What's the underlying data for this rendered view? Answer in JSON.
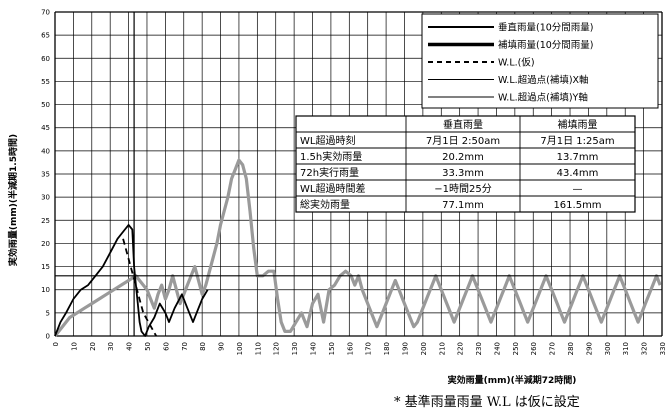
{
  "chart_data": {
    "type": "line",
    "title": "",
    "xlabel": "実効雨量(mm)(半減期72時間)",
    "ylabel": "実効雨量(mm)(半減期1.5時間)",
    "xlim": [
      0,
      330
    ],
    "ylim": [
      0,
      70
    ],
    "x_ticks": [
      0,
      10,
      20,
      30,
      40,
      50,
      60,
      70,
      80,
      90,
      100,
      110,
      120,
      130,
      140,
      150,
      160,
      170,
      180,
      190,
      200,
      210,
      220,
      230,
      240,
      250,
      260,
      270,
      280,
      290,
      300,
      310,
      320,
      330
    ],
    "y_ticks": [
      0,
      5,
      10,
      15,
      20,
      25,
      30,
      35,
      40,
      45,
      50,
      55,
      60,
      65,
      70
    ],
    "grid": true,
    "legend_position": "top-right",
    "legend": [
      "垂直雨量(10分間雨量)",
      "補填雨量(10分間雨量)",
      "W.L.(仮)",
      "W.L.超過点(補填)X軸",
      "W.L.超過点(補填)Y軸"
    ],
    "series": [
      {
        "name": "垂直雨量(10分間雨量)",
        "color": "#000000",
        "points": [
          [
            0,
            0
          ],
          [
            3,
            3
          ],
          [
            6,
            5
          ],
          [
            10,
            8
          ],
          [
            14,
            10
          ],
          [
            18,
            11
          ],
          [
            22,
            13
          ],
          [
            26,
            15
          ],
          [
            30,
            18
          ],
          [
            34,
            21
          ],
          [
            38,
            23
          ],
          [
            40,
            24
          ],
          [
            42,
            23
          ],
          [
            43,
            15
          ],
          [
            44,
            11
          ],
          [
            45,
            7
          ],
          [
            46,
            3
          ],
          [
            47,
            1
          ],
          [
            49,
            0
          ],
          [
            51,
            2
          ],
          [
            54,
            4
          ],
          [
            57,
            7
          ],
          [
            60,
            5
          ],
          [
            62,
            3
          ],
          [
            65,
            6
          ],
          [
            69,
            9
          ],
          [
            72,
            6
          ],
          [
            75,
            3
          ],
          [
            77,
            5
          ],
          [
            80,
            8
          ],
          [
            83,
            10
          ]
        ]
      },
      {
        "name": "補填雨量(10分間雨量)",
        "color": "#9a9a9a",
        "points": [
          [
            0,
            0
          ],
          [
            4,
            2
          ],
          [
            8,
            4
          ],
          [
            12,
            5
          ],
          [
            16,
            6
          ],
          [
            20,
            7
          ],
          [
            24,
            8
          ],
          [
            28,
            9
          ],
          [
            32,
            10
          ],
          [
            36,
            11
          ],
          [
            40,
            12
          ],
          [
            44,
            13
          ],
          [
            46,
            12
          ],
          [
            48,
            11
          ],
          [
            50,
            10
          ],
          [
            52,
            8
          ],
          [
            54,
            6
          ],
          [
            56,
            9
          ],
          [
            58,
            11
          ],
          [
            60,
            8
          ],
          [
            62,
            10
          ],
          [
            64,
            13
          ],
          [
            66,
            10
          ],
          [
            68,
            7
          ],
          [
            70,
            9
          ],
          [
            72,
            11
          ],
          [
            74,
            13
          ],
          [
            76,
            15
          ],
          [
            78,
            12
          ],
          [
            80,
            9
          ],
          [
            82,
            11
          ],
          [
            84,
            14
          ],
          [
            86,
            17
          ],
          [
            88,
            20
          ],
          [
            90,
            24
          ],
          [
            92,
            27
          ],
          [
            94,
            30
          ],
          [
            96,
            34
          ],
          [
            98,
            36
          ],
          [
            100,
            38
          ],
          [
            102,
            37
          ],
          [
            104,
            34
          ],
          [
            106,
            27
          ],
          [
            108,
            19
          ],
          [
            110,
            13
          ],
          [
            113,
            13
          ],
          [
            116,
            14
          ],
          [
            119,
            14
          ],
          [
            121,
            8
          ],
          [
            123,
            3
          ],
          [
            125,
            1
          ],
          [
            128,
            1
          ],
          [
            131,
            3
          ],
          [
            134,
            5
          ],
          [
            137,
            2
          ],
          [
            140,
            7
          ],
          [
            143,
            9
          ],
          [
            146,
            3
          ],
          [
            149,
            10
          ],
          [
            152,
            11
          ],
          [
            155,
            13
          ],
          [
            158,
            14
          ],
          [
            161,
            13
          ],
          [
            163,
            11
          ],
          [
            165,
            13
          ],
          [
            167,
            10
          ],
          [
            169,
            8
          ],
          [
            171,
            6
          ],
          [
            173,
            4
          ],
          [
            175,
            2
          ],
          [
            177,
            4
          ],
          [
            179,
            6
          ],
          [
            181,
            8
          ],
          [
            183,
            10
          ],
          [
            185,
            12
          ],
          [
            187,
            10
          ],
          [
            189,
            8
          ],
          [
            191,
            6
          ],
          [
            193,
            4
          ],
          [
            195,
            2
          ],
          [
            197,
            3
          ],
          [
            199,
            5
          ],
          [
            201,
            7
          ],
          [
            203,
            9
          ],
          [
            205,
            11
          ],
          [
            207,
            13
          ],
          [
            209,
            11
          ],
          [
            211,
            9
          ],
          [
            213,
            7
          ],
          [
            215,
            5
          ],
          [
            217,
            3
          ],
          [
            219,
            5
          ],
          [
            221,
            7
          ],
          [
            223,
            9
          ],
          [
            225,
            11
          ],
          [
            227,
            13
          ],
          [
            229,
            11
          ],
          [
            231,
            9
          ],
          [
            233,
            7
          ],
          [
            235,
            5
          ],
          [
            237,
            3
          ],
          [
            239,
            5
          ],
          [
            241,
            7
          ],
          [
            243,
            9
          ],
          [
            245,
            11
          ],
          [
            247,
            13
          ],
          [
            249,
            11
          ],
          [
            251,
            9
          ],
          [
            253,
            7
          ],
          [
            255,
            5
          ],
          [
            257,
            3
          ],
          [
            259,
            5
          ],
          [
            261,
            7
          ],
          [
            263,
            9
          ],
          [
            265,
            11
          ],
          [
            267,
            13
          ],
          [
            269,
            11
          ],
          [
            271,
            9
          ],
          [
            273,
            7
          ],
          [
            275,
            5
          ],
          [
            277,
            3
          ],
          [
            279,
            5
          ],
          [
            281,
            7
          ],
          [
            283,
            9
          ],
          [
            285,
            11
          ],
          [
            287,
            13
          ],
          [
            289,
            11
          ],
          [
            291,
            9
          ],
          [
            293,
            7
          ],
          [
            295,
            5
          ],
          [
            297,
            3
          ],
          [
            299,
            5
          ],
          [
            301,
            7
          ],
          [
            303,
            9
          ],
          [
            305,
            11
          ],
          [
            307,
            13
          ],
          [
            309,
            11
          ],
          [
            311,
            9
          ],
          [
            313,
            7
          ],
          [
            315,
            5
          ],
          [
            317,
            3
          ],
          [
            319,
            5
          ],
          [
            321,
            7
          ],
          [
            323,
            9
          ],
          [
            325,
            11
          ],
          [
            327,
            13
          ],
          [
            329,
            11
          ]
        ]
      }
    ],
    "wl_line": {
      "name": "W.L.(仮)",
      "style": "dashed",
      "points": [
        [
          37,
          21
        ],
        [
          48,
          5
        ],
        [
          55,
          0
        ]
      ]
    },
    "threshold_x": {
      "name": "W.L.超過点(補填)X軸",
      "x": 43
    },
    "threshold_y": {
      "name": "W.L.超過点(補填)Y軸",
      "y": 13
    },
    "table": {
      "headers": [
        "",
        "垂直雨量",
        "補填雨量"
      ],
      "rows": [
        [
          "WL超過時刻",
          "7月1日 2:50am",
          "7月1日 1:25am"
        ],
        [
          "1.5h実効雨量",
          "20.2mm",
          "13.7mm"
        ],
        [
          "72h実行雨量",
          "33.3mm",
          "43.4mm"
        ],
        [
          "WL超過時間差",
          "−1時間25分",
          "—"
        ],
        [
          "総実効雨量",
          "77.1mm",
          "161.5mm"
        ]
      ]
    },
    "footnote": "* 基準雨量雨量 W.L は仮に設定"
  }
}
